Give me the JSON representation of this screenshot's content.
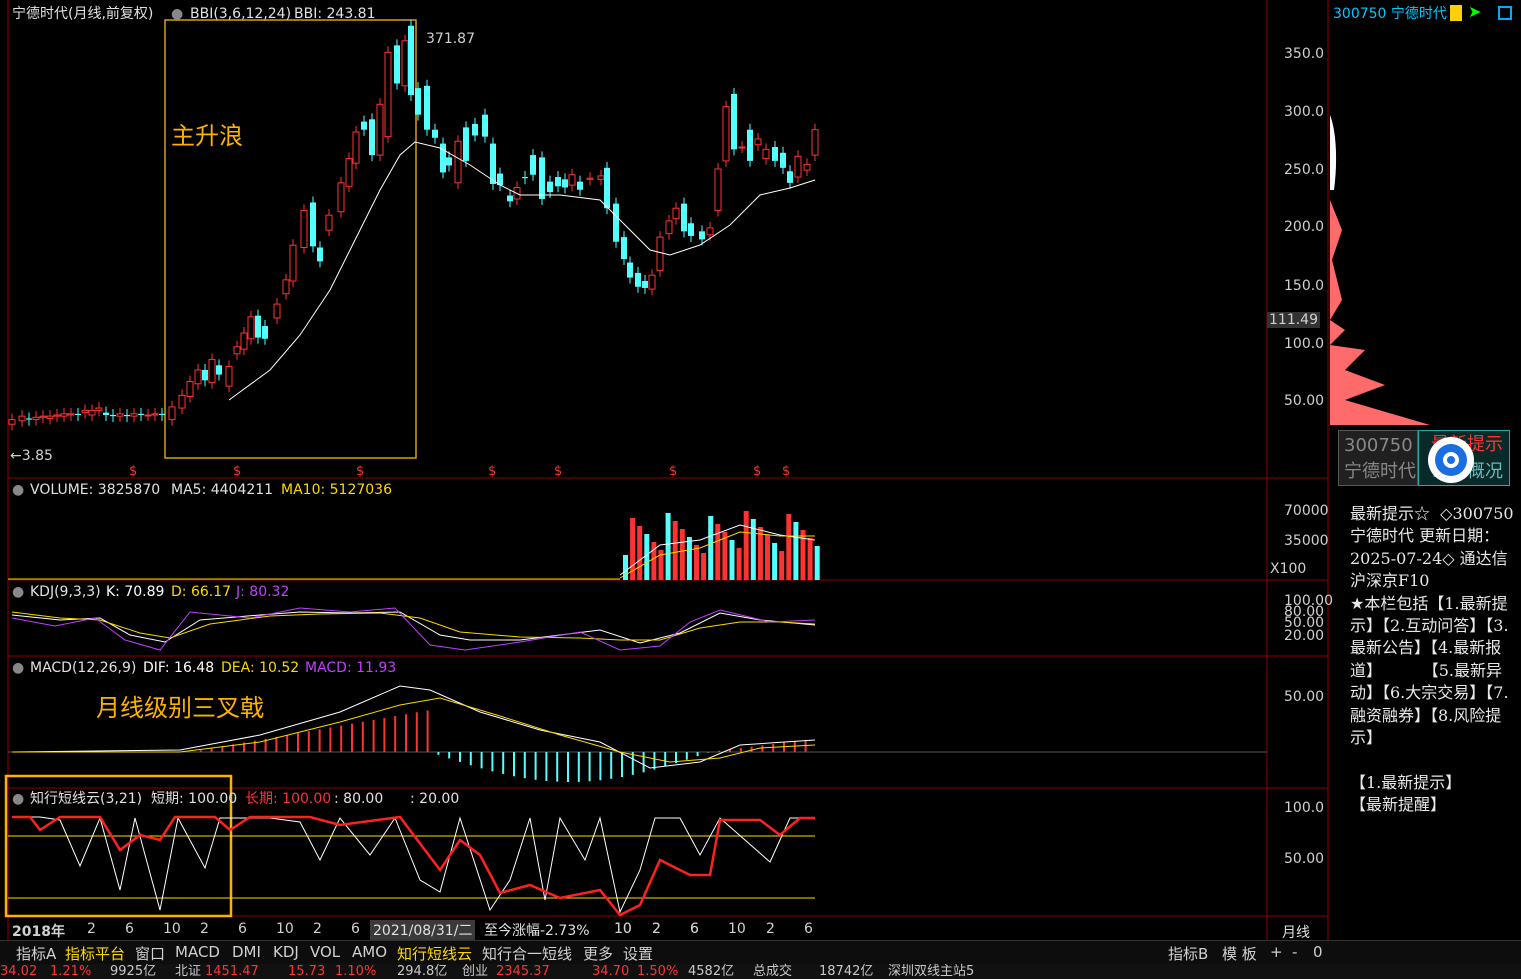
{
  "main": {
    "title": "宁德时代(月线,前复权)",
    "indicator": "BBI(3,6,12,24)",
    "indicator_value": "BBI: 243.81",
    "high_label": "371.87",
    "low_label": "←3.85",
    "annotation": "主升浪",
    "y_ticks": [
      "350.0",
      "300.0",
      "250.0",
      "200.0",
      "150.0",
      "100.0",
      "50.00"
    ],
    "current_price": "111.49"
  },
  "volume": {
    "label": "VOLUME: 3825870",
    "ma5": "MA5: 4404211",
    "ma10": "MA10: 5127036",
    "y_ticks": [
      "70000",
      "35000"
    ],
    "unit": "X100"
  },
  "kdj": {
    "label": "KDJ(9,3,3)",
    "k": "K: 70.89",
    "d": "D: 66.17",
    "j": "J: 80.32",
    "y_ticks": [
      "100.00",
      "80.00",
      "50.00",
      "20.00"
    ]
  },
  "macd": {
    "label": "MACD(12,26,9)",
    "dif": "DIF: 16.48",
    "dea": "DEA: 10.52",
    "macd": "MACD: 11.93",
    "annotation": "月线级别三叉戟",
    "y_ticks": [
      "50.00"
    ]
  },
  "cloud": {
    "label": "知行短线云(3,21)",
    "short": "短期: 100.00",
    "long": "长期: 100.00",
    "lvl80": ": 80.00",
    "lvl20": ": 20.00",
    "y_ticks": [
      "100.0",
      "50.00"
    ]
  },
  "x_axis": {
    "labels": [
      "2018年",
      "2",
      "6",
      "10",
      "2",
      "6",
      "10",
      "2",
      "6",
      "10",
      "2",
      "6",
      "10",
      "2",
      "6",
      "10",
      "2",
      "6"
    ],
    "hover_date": "2021/08/31/二",
    "change": "至今涨幅-2.73%",
    "period": "月线"
  },
  "right_panel": {
    "code_title": "300750 宁德时代",
    "mini_code": "300750",
    "mini_name": "宁德时代",
    "badge_top": "最新提示",
    "badge_bottom": "公司概况",
    "f10_text": "最新提示☆  ◇300750 宁德时代 更新日期：2025-07-24◇ 通达信 沪深京F10\n★本栏包括【1.最新提示】【2.互动问答】【3.最新公告】【4.最新报道】        【5.最新异动】【6.大宗交易】【7.融资融券】【8.风险提示】\n\n【1.最新提示】\n【最新提醒】"
  },
  "tabs": [
    "指标A",
    "指标平台",
    "窗口",
    "MACD",
    "DMI",
    "KDJ",
    "VOL",
    "AMO",
    "知行短线云",
    "知行合一短线",
    "更多",
    "设置"
  ],
  "tabs_right": [
    "指标B",
    "模 板",
    "+",
    "-",
    "0"
  ],
  "status_bar": [
    "34.02",
    "1.21%",
    "9925亿",
    "北证",
    "1451.47",
    "15.73",
    "1.10%",
    "294.8亿",
    "创业",
    "2345.37",
    "34.70",
    "1.50%",
    "4582亿",
    "总成交",
    "18742亿",
    "深圳双线主站5"
  ],
  "colors": {
    "up": "#ff3232",
    "down": "#54ffff",
    "bbi": "#ffffff",
    "ma5": "#ffffff",
    "ma10": "#ffd700",
    "kdj_j": "#c040ff",
    "border": "#8b0000",
    "annotation": "#ffb000"
  }
}
